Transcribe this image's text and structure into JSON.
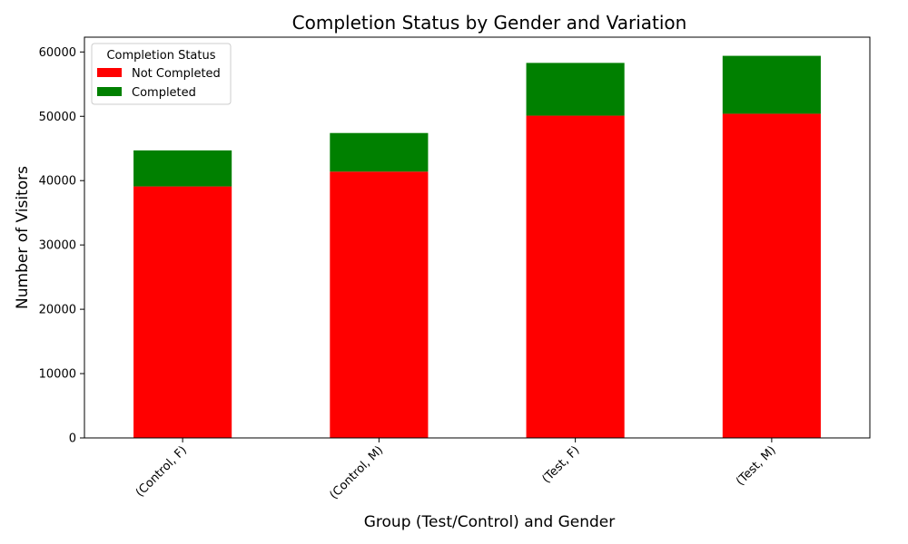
{
  "chart_data": {
    "type": "bar",
    "stacked": true,
    "title": "Completion Status by Gender and Variation",
    "xlabel": "Group (Test/Control) and Gender",
    "ylabel": "Number of Visitors",
    "categories": [
      "(Control, F)",
      "(Control, M)",
      "(Test, F)",
      "(Test, M)"
    ],
    "series": [
      {
        "name": "Not Completed",
        "color": "#ff0000",
        "values": [
          39100,
          41400,
          50100,
          50400
        ]
      },
      {
        "name": "Completed",
        "color": "#008000",
        "values": [
          5600,
          6000,
          8200,
          9000
        ]
      }
    ],
    "ylim": [
      0,
      62300
    ],
    "yticks": [
      0,
      10000,
      20000,
      30000,
      40000,
      50000,
      60000
    ],
    "grid": false,
    "legend": {
      "title": "Completion Status",
      "placement": "top-left"
    }
  }
}
